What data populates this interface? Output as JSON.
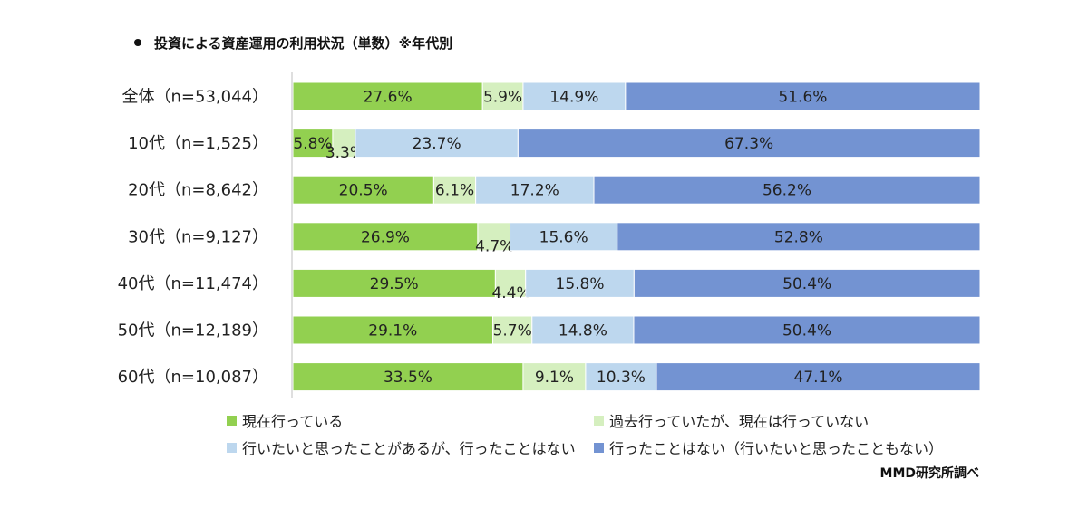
{
  "chart_data": {
    "type": "bar",
    "orientation": "horizontal",
    "stacked": true,
    "normalized": true,
    "title": "投資による資産運用の利用状況（単数）※年代別",
    "categories": [
      "全体（n=53,044）",
      "10代（n=1,525）",
      "20代（n=8,642）",
      "30代（n=9,127）",
      "40代（n=11,474）",
      "50代（n=12,189）",
      "60代（n=10,087）"
    ],
    "series": [
      {
        "name": "現在行っている",
        "color": "#92D050",
        "values": [
          27.6,
          5.8,
          20.5,
          26.9,
          29.5,
          29.1,
          33.5
        ],
        "labels": [
          "27.6%",
          "5.8%",
          "20.5%",
          "26.9%",
          "29.5%",
          "29.1%",
          "33.5%"
        ]
      },
      {
        "name": "過去行っていたが、現在は行っていない",
        "color": "#D5EFBF",
        "values": [
          5.9,
          3.3,
          6.1,
          4.7,
          4.4,
          5.7,
          9.1
        ],
        "labels": [
          "5.9%",
          "3.3%",
          "6.1%",
          "4.7%",
          "4.4%",
          "5.7%",
          "9.1%"
        ]
      },
      {
        "name": "行いたいと思ったことがあるが、行ったことはない",
        "color": "#BDD7EE",
        "values": [
          14.9,
          23.7,
          17.2,
          15.6,
          15.8,
          14.8,
          10.3
        ],
        "labels": [
          "14.9%",
          "23.7%",
          "17.2%",
          "15.6%",
          "15.8%",
          "14.8%",
          "10.3%"
        ]
      },
      {
        "name": "行ったことはない（行いたいと思ったこともない）",
        "color": "#7393D2",
        "values": [
          51.6,
          67.3,
          56.2,
          52.8,
          50.4,
          50.4,
          47.1
        ],
        "labels": [
          "51.6%",
          "67.3%",
          "56.2%",
          "52.8%",
          "50.4%",
          "50.4%",
          "47.1%"
        ]
      }
    ],
    "xlim": [
      0,
      100
    ],
    "grid": false,
    "legend_position": "bottom"
  },
  "source": "MMD研究所調べ"
}
